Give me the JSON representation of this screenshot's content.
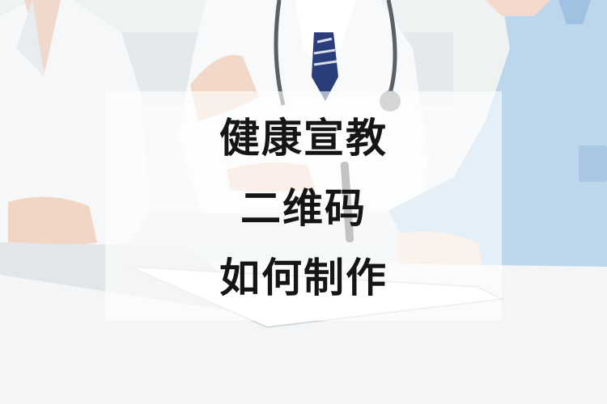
{
  "title_lines": [
    "健康宣教",
    "二维码",
    "如何制作"
  ],
  "colors": {
    "overlay": "rgba(255,255,255,0.62)",
    "text": "#151515",
    "coat_white": "#f7f8f9",
    "scrub_blue": "#bcd6ec"
  }
}
